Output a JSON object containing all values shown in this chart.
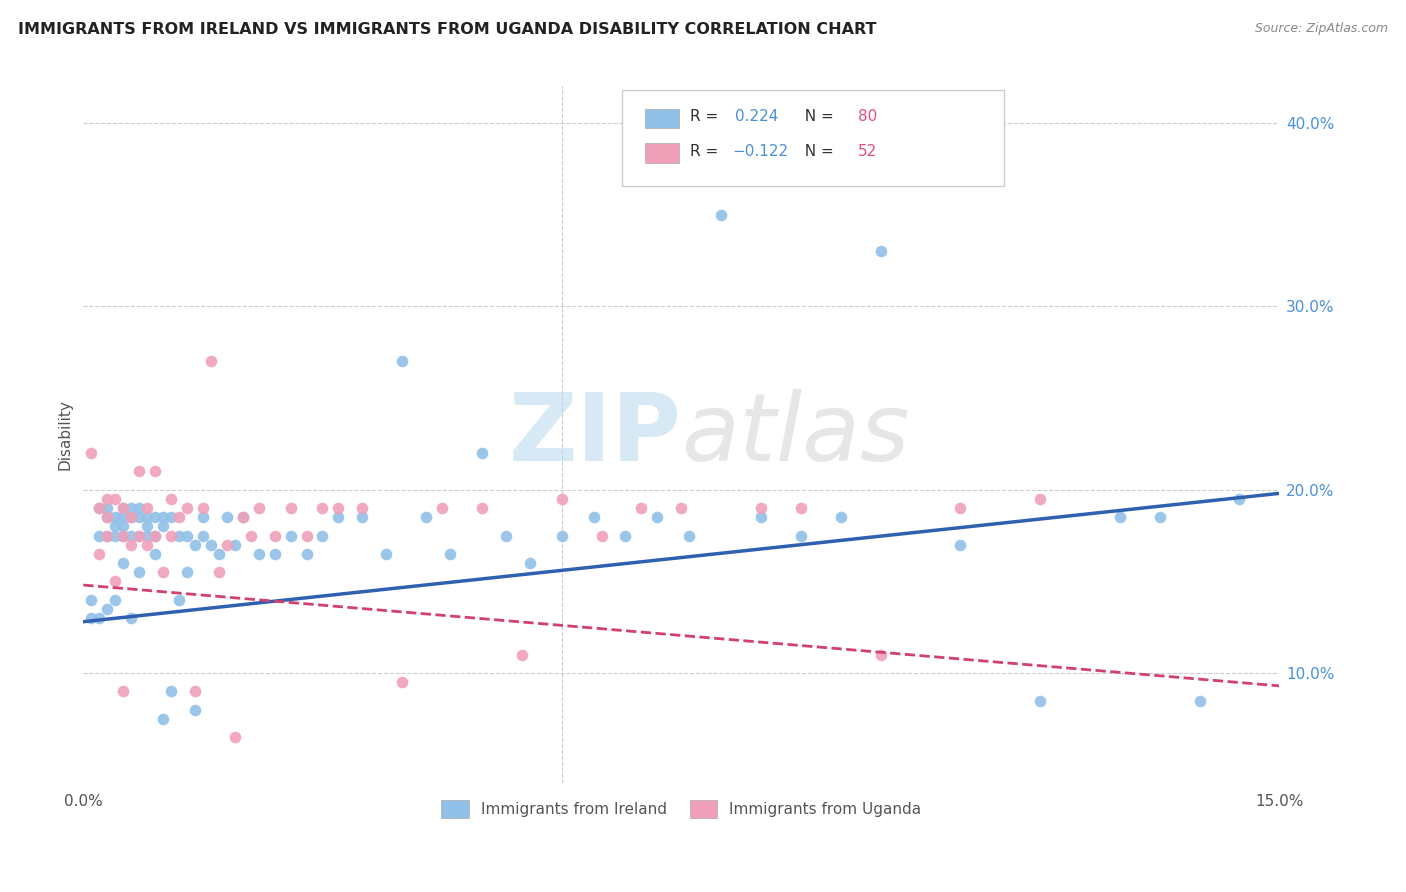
{
  "title": "IMMIGRANTS FROM IRELAND VS IMMIGRANTS FROM UGANDA DISABILITY CORRELATION CHART",
  "source": "Source: ZipAtlas.com",
  "ylabel": "Disability",
  "xlim": [
    0.0,
    0.15
  ],
  "ylim": [
    0.04,
    0.42
  ],
  "xticks": [
    0.0,
    0.03,
    0.06,
    0.09,
    0.12,
    0.15
  ],
  "xticklabels": [
    "0.0%",
    "",
    "",
    "",
    "",
    "15.0%"
  ],
  "yticks_right": [
    0.1,
    0.2,
    0.3,
    0.4
  ],
  "ytick_labels_right": [
    "10.0%",
    "20.0%",
    "30.0%",
    "40.0%"
  ],
  "ireland_color": "#90C0E8",
  "ireland_line_color": "#3060B0",
  "uganda_color": "#F0A0B8",
  "uganda_line_color": "#D04070",
  "ireland_R": 0.224,
  "ireland_N": 80,
  "uganda_R": -0.122,
  "uganda_N": 52,
  "ireland_line_x0": 0.0,
  "ireland_line_y0": 0.128,
  "ireland_line_x1": 0.15,
  "ireland_line_y1": 0.198,
  "uganda_line_x0": 0.0,
  "uganda_line_y0": 0.148,
  "uganda_line_x1": 0.15,
  "uganda_line_y1": 0.093,
  "ireland_x": [
    0.001,
    0.001,
    0.002,
    0.002,
    0.002,
    0.003,
    0.003,
    0.003,
    0.003,
    0.004,
    0.004,
    0.004,
    0.004,
    0.005,
    0.005,
    0.005,
    0.005,
    0.005,
    0.006,
    0.006,
    0.006,
    0.006,
    0.007,
    0.007,
    0.007,
    0.007,
    0.008,
    0.008,
    0.008,
    0.009,
    0.009,
    0.009,
    0.01,
    0.01,
    0.01,
    0.011,
    0.011,
    0.012,
    0.012,
    0.013,
    0.013,
    0.014,
    0.014,
    0.015,
    0.015,
    0.016,
    0.017,
    0.018,
    0.019,
    0.02,
    0.022,
    0.024,
    0.026,
    0.028,
    0.03,
    0.032,
    0.035,
    0.038,
    0.04,
    0.043,
    0.046,
    0.05,
    0.053,
    0.056,
    0.06,
    0.064,
    0.068,
    0.072,
    0.076,
    0.08,
    0.085,
    0.09,
    0.095,
    0.1,
    0.11,
    0.12,
    0.13,
    0.135,
    0.14,
    0.145
  ],
  "ireland_y": [
    0.14,
    0.13,
    0.19,
    0.175,
    0.13,
    0.19,
    0.185,
    0.175,
    0.135,
    0.185,
    0.18,
    0.175,
    0.14,
    0.19,
    0.185,
    0.18,
    0.175,
    0.16,
    0.19,
    0.185,
    0.175,
    0.13,
    0.19,
    0.185,
    0.175,
    0.155,
    0.185,
    0.18,
    0.175,
    0.185,
    0.175,
    0.165,
    0.185,
    0.18,
    0.075,
    0.185,
    0.09,
    0.175,
    0.14,
    0.175,
    0.155,
    0.17,
    0.08,
    0.185,
    0.175,
    0.17,
    0.165,
    0.185,
    0.17,
    0.185,
    0.165,
    0.165,
    0.175,
    0.165,
    0.175,
    0.185,
    0.185,
    0.165,
    0.27,
    0.185,
    0.165,
    0.22,
    0.175,
    0.16,
    0.175,
    0.185,
    0.175,
    0.185,
    0.175,
    0.35,
    0.185,
    0.175,
    0.185,
    0.33,
    0.17,
    0.085,
    0.185,
    0.185,
    0.085,
    0.195
  ],
  "uganda_x": [
    0.001,
    0.002,
    0.002,
    0.003,
    0.003,
    0.003,
    0.004,
    0.004,
    0.005,
    0.005,
    0.005,
    0.006,
    0.006,
    0.007,
    0.007,
    0.008,
    0.008,
    0.009,
    0.009,
    0.01,
    0.011,
    0.011,
    0.012,
    0.013,
    0.014,
    0.015,
    0.016,
    0.017,
    0.018,
    0.019,
    0.02,
    0.021,
    0.022,
    0.024,
    0.026,
    0.028,
    0.03,
    0.032,
    0.035,
    0.04,
    0.045,
    0.05,
    0.055,
    0.06,
    0.065,
    0.07,
    0.075,
    0.085,
    0.09,
    0.1,
    0.11,
    0.12
  ],
  "uganda_y": [
    0.22,
    0.19,
    0.165,
    0.195,
    0.185,
    0.175,
    0.195,
    0.15,
    0.19,
    0.175,
    0.09,
    0.185,
    0.17,
    0.21,
    0.175,
    0.19,
    0.17,
    0.21,
    0.175,
    0.155,
    0.195,
    0.175,
    0.185,
    0.19,
    0.09,
    0.19,
    0.27,
    0.155,
    0.17,
    0.065,
    0.185,
    0.175,
    0.19,
    0.175,
    0.19,
    0.175,
    0.19,
    0.19,
    0.19,
    0.095,
    0.19,
    0.19,
    0.11,
    0.195,
    0.175,
    0.19,
    0.19,
    0.19,
    0.19,
    0.11,
    0.19,
    0.195
  ]
}
